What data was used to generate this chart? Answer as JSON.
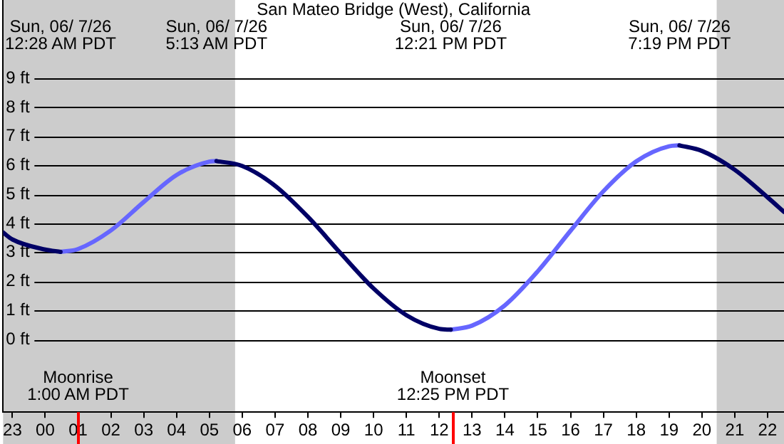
{
  "chart_data": {
    "type": "line",
    "title": "San Mateo Bridge (West), California",
    "xlim": [
      "--06-06T22:43",
      "--06-07T22:30"
    ],
    "ylim": [
      -2.5,
      11.7
    ],
    "xticks": [
      {
        "value": "--06-06T23:00",
        "label": "23"
      },
      {
        "value": "--06-07T00:00",
        "label": "00"
      },
      {
        "value": "--06-07T01:00",
        "label": "01"
      },
      {
        "value": "--06-07T02:00",
        "label": "02"
      },
      {
        "value": "--06-07T03:00",
        "label": "03"
      },
      {
        "value": "--06-07T04:00",
        "label": "04"
      },
      {
        "value": "--06-07T05:00",
        "label": "05"
      },
      {
        "value": "--06-07T06:00",
        "label": "06"
      },
      {
        "value": "--06-07T07:00",
        "label": "07"
      },
      {
        "value": "--06-07T08:00",
        "label": "08"
      },
      {
        "value": "--06-07T09:00",
        "label": "09"
      },
      {
        "value": "--06-07T10:00",
        "label": "10"
      },
      {
        "value": "--06-07T11:00",
        "label": "11"
      },
      {
        "value": "--06-07T12:00",
        "label": "12"
      },
      {
        "value": "--06-07T13:00",
        "label": "13"
      },
      {
        "value": "--06-07T14:00",
        "label": "14"
      },
      {
        "value": "--06-07T15:00",
        "label": "15"
      },
      {
        "value": "--06-07T16:00",
        "label": "16"
      },
      {
        "value": "--06-07T17:00",
        "label": "17"
      },
      {
        "value": "--06-07T18:00",
        "label": "18"
      },
      {
        "value": "--06-07T19:00",
        "label": "19"
      },
      {
        "value": "--06-07T20:00",
        "label": "20"
      },
      {
        "value": "--06-07T21:00",
        "label": "21"
      },
      {
        "value": "--06-07T22:00",
        "label": "22"
      }
    ],
    "yticks": [
      {
        "value": 0,
        "label": "0 ft"
      },
      {
        "value": 1,
        "label": "1 ft"
      },
      {
        "value": 2,
        "label": "2 ft"
      },
      {
        "value": 3,
        "label": "3 ft"
      },
      {
        "value": 4,
        "label": "4 ft"
      },
      {
        "value": 5,
        "label": "5 ft"
      },
      {
        "value": 6,
        "label": "6 ft"
      },
      {
        "value": 7,
        "label": "7 ft"
      },
      {
        "value": 8,
        "label": "8 ft"
      },
      {
        "value": 9,
        "label": "9 ft"
      }
    ],
    "grid": "y",
    "legend": false,
    "marker": "none",
    "line_style": "solid",
    "bands": [
      {
        "axis": "x",
        "from": "--06-06T22:43",
        "to": "--06-07T05:47",
        "color": "#cccccc"
      },
      {
        "axis": "x",
        "from": "--06-07T20:27",
        "to": "--06-07T22:30",
        "color": "#cccccc"
      }
    ],
    "ref_lines": [
      {
        "axis": "x",
        "value": "--06-07T01:00",
        "label": "Moonrise\n1:00 AM PDT",
        "color": "#ff0000"
      },
      {
        "axis": "x",
        "value": "--06-07T12:25",
        "label": "Moonset\n12:25 PM PDT",
        "color": "#ff0000"
      }
    ],
    "series": [
      {
        "color": "#000066",
        "x": [
          "--06-06T22:43",
          "--06-06T23:00",
          "--06-07T00:00",
          "--06-07T00:28",
          null,
          "--06-07T05:13",
          "--06-07T06:00",
          "--06-07T07:00",
          "--06-07T08:00",
          "--06-07T09:00",
          "--06-07T10:00",
          "--06-07T11:00",
          "--06-07T12:00",
          "--06-07T12:21",
          null,
          "--06-07T19:19",
          "--06-07T20:00",
          "--06-07T21:00",
          "--06-07T22:00",
          "--06-07T22:30"
        ],
        "values": [
          3.69,
          3.45,
          3.1,
          3.02,
          null,
          6.15,
          5.98,
          5.3,
          4.23,
          2.97,
          1.76,
          0.84,
          0.37,
          0.34,
          null,
          6.69,
          6.5,
          5.85,
          4.9,
          4.4
        ]
      },
      {
        "color": "#6666ff",
        "x": [
          "--06-07T00:28",
          "--06-07T01:00",
          "--06-07T02:00",
          "--06-07T03:00",
          "--06-07T04:00",
          "--06-07T05:00",
          "--06-07T05:13",
          null,
          "--06-07T12:21",
          "--06-07T13:00",
          "--06-07T14:00",
          "--06-07T15:00",
          "--06-07T16:00",
          "--06-07T17:00",
          "--06-07T18:00",
          "--06-07T19:00",
          "--06-07T19:19"
        ],
        "values": [
          3.02,
          3.12,
          3.76,
          4.74,
          5.67,
          6.13,
          6.15,
          null,
          0.34,
          0.48,
          1.18,
          2.35,
          3.75,
          5.11,
          6.14,
          6.66,
          6.69
        ]
      }
    ],
    "annotations": [
      "Sun, 06/ 7/26\n12:28 AM PDT",
      "Sun, 06/ 7/26\n5:13 AM PDT",
      "Sun, 06/ 7/26\n12:21 PM PDT",
      "Sun, 06/ 7/26\n7:19 PM PDT"
    ]
  }
}
